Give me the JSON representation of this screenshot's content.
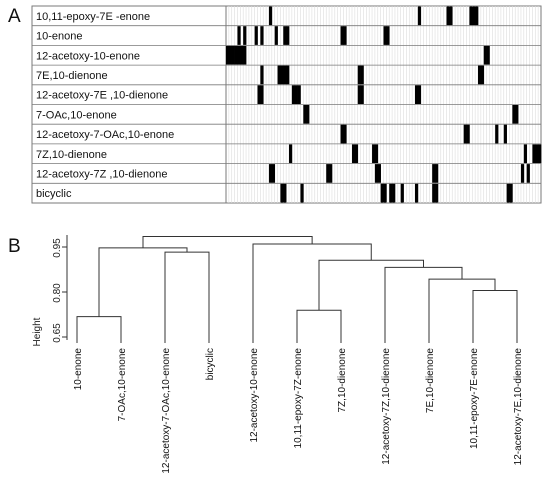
{
  "panel_a": {
    "letter": "A",
    "rows": [
      {
        "label": "10,11-epoxy-7E -enone",
        "cells": [
          15,
          67,
          77,
          78,
          85,
          86,
          87
        ]
      },
      {
        "label": "10-enone",
        "cells": [
          4,
          6,
          10,
          12,
          17,
          20,
          21,
          40,
          41,
          55,
          56
        ]
      },
      {
        "label": "12-acetoxy-10-enone",
        "cells": [
          0,
          1,
          2,
          3,
          4,
          5,
          6,
          90,
          91
        ]
      },
      {
        "label": "7E,10-dienone",
        "cells": [
          12,
          18,
          19,
          20,
          21,
          46,
          47,
          88,
          89
        ]
      },
      {
        "label": "12-acetoxy-7E ,10-dienone",
        "cells": [
          11,
          12,
          23,
          24,
          25,
          46,
          47,
          66,
          67
        ]
      },
      {
        "label": "7-OAc,10-enone",
        "cells": [
          27,
          28,
          100,
          101
        ]
      },
      {
        "label": "12-acetoxy-7-OAc,10-enone",
        "cells": [
          40,
          41,
          83,
          84,
          94,
          97
        ]
      },
      {
        "label": "7Z,10-dienone",
        "cells": [
          22,
          44,
          45,
          51,
          52,
          104,
          107,
          108,
          109
        ]
      },
      {
        "label": "12-acetoxy-7Z ,10-dienone",
        "cells": [
          15,
          16,
          35,
          36,
          52,
          53,
          72,
          73,
          103,
          105
        ]
      },
      {
        "label": "bicyclic",
        "cells": [
          19,
          20,
          26,
          54,
          55,
          57,
          58,
          61,
          66,
          72,
          73,
          98,
          99
        ]
      }
    ]
  },
  "panel_b": {
    "letter": "B",
    "y_axis_label": "Height",
    "y_ticks": [
      "0.95",
      "0.80",
      "0.65"
    ],
    "leaves": [
      "10-enone",
      "7-OAc,10-enone",
      "12-acetoxy-7-OAc,10-enone",
      "bicyclic",
      "12-acetoxy-10-enone",
      "10,11-epoxy-7Z-enone",
      "7Z,10-dienone",
      "12-acetoxy-7Z,10-dienone",
      "7E,10-dienone",
      "10,11-epoxy-7E-enone",
      "12-acetoxy-7E,10-dienone"
    ],
    "merges": [
      {
        "a": "L0",
        "b": "L1",
        "h": 0.718
      },
      {
        "a": "L2",
        "b": "L3",
        "h": 0.933
      },
      {
        "a": "N0",
        "b": "N1",
        "h": 0.947
      },
      {
        "a": "L5",
        "b": "L6",
        "h": 0.739
      },
      {
        "a": "L9",
        "b": "L10",
        "h": 0.805
      },
      {
        "a": "L8",
        "b": "N4",
        "h": 0.843
      },
      {
        "a": "L7",
        "b": "N5",
        "h": 0.882
      },
      {
        "a": "N3",
        "b": "N6",
        "h": 0.906
      },
      {
        "a": "L4",
        "b": "N7",
        "h": 0.96
      },
      {
        "a": "N2",
        "b": "N8",
        "h": 0.985
      }
    ]
  }
}
